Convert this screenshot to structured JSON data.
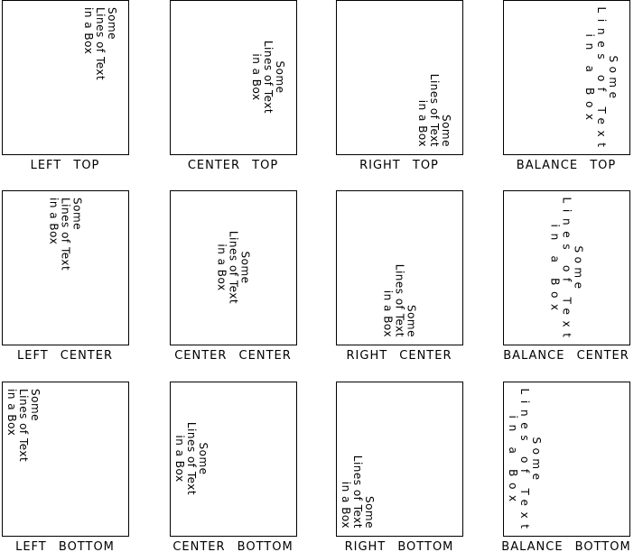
{
  "text_lines": [
    "Some",
    "Lines of Text",
    "in a Box"
  ],
  "panels": [
    {
      "label": "LEFT TOP"
    },
    {
      "label": "CENTER TOP"
    },
    {
      "label": "RIGHT TOP"
    },
    {
      "label": "BALANCE TOP"
    },
    {
      "label": "LEFT CENTER"
    },
    {
      "label": "CENTER CENTER"
    },
    {
      "label": "RIGHT CENTER"
    },
    {
      "label": "BALANCE CENTER"
    },
    {
      "label": "LEFT BOTTOM"
    },
    {
      "label": "CENTER BOTTOM"
    },
    {
      "label": "RIGHT BOTTOM"
    },
    {
      "label": "BALANCE BOTTOM"
    }
  ]
}
